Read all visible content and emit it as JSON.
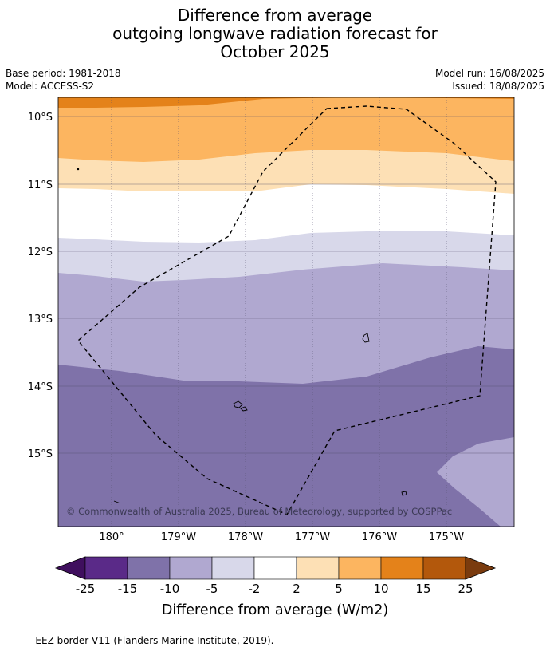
{
  "title": {
    "line1": "Difference from average",
    "line2": "outgoing longwave radiation forecast for",
    "line3": "October 2025"
  },
  "meta": {
    "base_period": "Base period: 1981-2018",
    "model": "Model: ACCESS-S2",
    "model_run": "Model run: 16/08/2025",
    "issued": "Issued: 18/08/2025"
  },
  "map": {
    "lat_labels": [
      "10°S",
      "11°S",
      "12°S",
      "13°S",
      "14°S",
      "15°S"
    ],
    "lon_labels": [
      "180°",
      "179°W",
      "178°W",
      "177°W",
      "176°W",
      "175°W"
    ],
    "copyright": "© Commonwealth of Australia 2025, Bureau of Meteorology, supported by COSPPac",
    "eez_style": "dashed black line"
  },
  "colorbar": {
    "ticks": [
      "-25",
      "-15",
      "-10",
      "-5",
      "-2",
      "2",
      "5",
      "10",
      "15",
      "25"
    ],
    "colors": [
      "#3f0f5e",
      "#5a2a88",
      "#7f72a9",
      "#b0a8d0",
      "#d8d8ea",
      "#ffffff",
      "#fde0b5",
      "#fcb560",
      "#e4821a",
      "#b3580c",
      "#7a3b0e"
    ],
    "label": "Difference from average (W/m2)"
  },
  "footer": {
    "legend_text": "--  --  -- EEZ border V11 (Flanders Marine Institute, 2019)."
  }
}
